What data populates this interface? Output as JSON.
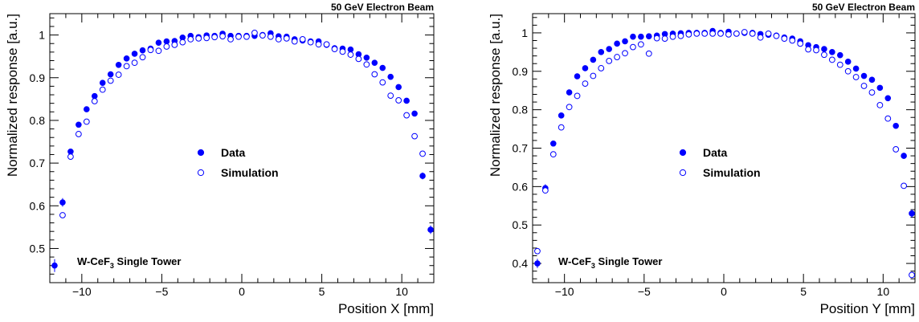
{
  "chart_data": [
    {
      "type": "scatter",
      "title": "50 GeV Electron Beam",
      "xlabel": "Position X [mm]",
      "ylabel": "Normalized response [a.u.]",
      "xlim": [
        -12,
        12
      ],
      "ylim": [
        0.42,
        1.05
      ],
      "xticks": [
        -10,
        -5,
        0,
        5,
        10
      ],
      "yticks": [
        0.5,
        0.6,
        0.7,
        0.8,
        0.9,
        1
      ],
      "xtick_labels": [
        "−10",
        "−5",
        "0",
        "5",
        "10"
      ],
      "ytick_labels": [
        "0.5",
        "0.6",
        "0.7",
        "0.8",
        "0.9",
        "1"
      ],
      "grid": false,
      "legend_position": "center",
      "annotation": {
        "prefix": "W-CeF",
        "sub": "3",
        "suffix": " Single Tower"
      },
      "series": [
        {
          "name": "Data",
          "marker": "filled-circle",
          "color": "#0000ff",
          "x": [
            -11.7,
            -11.2,
            -10.7,
            -10.2,
            -9.7,
            -9.2,
            -8.7,
            -8.2,
            -7.7,
            -7.2,
            -6.7,
            -6.2,
            -5.7,
            -5.2,
            -4.7,
            -4.2,
            -3.7,
            -3.2,
            -2.7,
            -2.2,
            -1.7,
            -1.2,
            -0.7,
            -0.2,
            0.3,
            0.8,
            1.3,
            1.8,
            2.3,
            2.8,
            3.3,
            3.8,
            4.3,
            4.8,
            5.3,
            5.8,
            6.3,
            6.8,
            7.3,
            7.8,
            8.3,
            8.8,
            9.3,
            9.8,
            10.3,
            10.8,
            11.3,
            11.8
          ],
          "y": [
            0.46,
            0.608,
            0.727,
            0.79,
            0.826,
            0.857,
            0.888,
            0.908,
            0.93,
            0.945,
            0.956,
            0.964,
            0.968,
            0.982,
            0.985,
            0.986,
            0.994,
            0.998,
            0.995,
            0.999,
            0.998,
            1.003,
            0.998,
            0.998,
            0.998,
            0.998,
            1.0,
            1.004,
            0.997,
            0.996,
            0.99,
            0.987,
            0.985,
            0.985,
            0.977,
            0.969,
            0.968,
            0.966,
            0.955,
            0.947,
            0.935,
            0.923,
            0.902,
            0.878,
            0.846,
            0.816,
            0.67,
            0.544
          ],
          "yerr": [
            0.015,
            0.01,
            0.006,
            0.006,
            0.005,
            0.005,
            0.005,
            0.005,
            0.005,
            0.005,
            0.005,
            0.005,
            0.005,
            0.005,
            0.005,
            0.005,
            0.005,
            0.005,
            0.005,
            0.005,
            0.005,
            0.005,
            0.005,
            0.005,
            0.005,
            0.005,
            0.005,
            0.005,
            0.005,
            0.005,
            0.005,
            0.005,
            0.005,
            0.005,
            0.005,
            0.005,
            0.005,
            0.005,
            0.005,
            0.005,
            0.005,
            0.005,
            0.005,
            0.005,
            0.005,
            0.006,
            0.008,
            0.01
          ]
        },
        {
          "name": "Simulation",
          "marker": "open-circle",
          "color": "#0000ff",
          "x": [
            -11.2,
            -10.7,
            -10.2,
            -9.7,
            -9.2,
            -8.7,
            -8.2,
            -7.7,
            -7.2,
            -6.7,
            -6.2,
            -5.7,
            -5.2,
            -4.7,
            -4.2,
            -3.7,
            -3.2,
            -2.7,
            -2.2,
            -1.7,
            -1.2,
            -0.7,
            -0.2,
            0.3,
            0.8,
            1.3,
            1.8,
            2.3,
            2.8,
            3.3,
            3.8,
            4.3,
            4.8,
            5.3,
            5.8,
            6.3,
            6.8,
            7.3,
            7.8,
            8.3,
            8.8,
            9.3,
            9.8,
            10.3,
            10.8,
            11.3
          ],
          "y": [
            0.578,
            0.715,
            0.768,
            0.797,
            0.845,
            0.872,
            0.893,
            0.907,
            0.927,
            0.935,
            0.948,
            0.965,
            0.963,
            0.973,
            0.977,
            0.983,
            0.99,
            0.992,
            0.993,
            0.995,
            0.997,
            0.99,
            0.996,
            0.996,
            1.005,
            0.999,
            0.996,
            0.99,
            0.992,
            0.985,
            0.99,
            0.983,
            0.978,
            0.978,
            0.967,
            0.961,
            0.954,
            0.944,
            0.931,
            0.908,
            0.889,
            0.858,
            0.847,
            0.812,
            0.763,
            0.722
          ]
        }
      ]
    },
    {
      "type": "scatter",
      "title": "50 GeV Electron Beam",
      "xlabel": "Position Y [mm]",
      "ylabel": "Normalized response [a.u.]",
      "xlim": [
        -12,
        12
      ],
      "ylim": [
        0.35,
        1.05
      ],
      "xticks": [
        -10,
        -5,
        0,
        5,
        10
      ],
      "yticks": [
        0.4,
        0.5,
        0.6,
        0.7,
        0.8,
        0.9,
        1
      ],
      "xtick_labels": [
        "−10",
        "−5",
        "0",
        "5",
        "10"
      ],
      "ytick_labels": [
        "0.4",
        "0.5",
        "0.6",
        "0.7",
        "0.8",
        "0.9",
        "1"
      ],
      "grid": false,
      "legend_position": "center",
      "annotation": {
        "prefix": "W-CeF",
        "sub": "3",
        "suffix": " Single Tower"
      },
      "series": [
        {
          "name": "Data",
          "marker": "filled-circle",
          "color": "#0000ff",
          "x": [
            -11.7,
            -11.2,
            -10.7,
            -10.2,
            -9.7,
            -9.2,
            -8.7,
            -8.2,
            -7.7,
            -7.2,
            -6.7,
            -6.2,
            -5.7,
            -5.2,
            -4.7,
            -4.2,
            -3.7,
            -3.2,
            -2.7,
            -2.2,
            -1.7,
            -1.2,
            -0.7,
            -0.2,
            0.3,
            0.8,
            1.3,
            1.8,
            2.3,
            2.8,
            3.3,
            3.8,
            4.3,
            4.8,
            5.3,
            5.8,
            6.3,
            6.8,
            7.3,
            7.8,
            8.3,
            8.8,
            9.3,
            9.8,
            10.3,
            10.8,
            11.3,
            11.8
          ],
          "y": [
            0.4,
            0.596,
            0.712,
            0.785,
            0.845,
            0.887,
            0.908,
            0.93,
            0.95,
            0.958,
            0.972,
            0.978,
            0.99,
            0.99,
            0.991,
            0.993,
            0.997,
            0.998,
            0.999,
            1.0,
            1.0,
            1.0,
            1.005,
            1.0,
            1.003,
            0.998,
            1.0,
            1.0,
            0.997,
            0.995,
            0.993,
            0.988,
            0.985,
            0.978,
            0.968,
            0.963,
            0.958,
            0.95,
            0.942,
            0.925,
            0.907,
            0.888,
            0.878,
            0.857,
            0.83,
            0.758,
            0.68,
            0.53
          ],
          "yerr": [
            0.012,
            0.01,
            0.006,
            0.006,
            0.005,
            0.005,
            0.005,
            0.005,
            0.005,
            0.005,
            0.005,
            0.005,
            0.005,
            0.005,
            0.005,
            0.005,
            0.005,
            0.005,
            0.005,
            0.005,
            0.005,
            0.005,
            0.005,
            0.005,
            0.005,
            0.005,
            0.005,
            0.005,
            0.005,
            0.005,
            0.005,
            0.005,
            0.005,
            0.005,
            0.005,
            0.005,
            0.005,
            0.005,
            0.005,
            0.005,
            0.005,
            0.005,
            0.005,
            0.005,
            0.006,
            0.006,
            0.008,
            0.01
          ]
        },
        {
          "name": "Simulation",
          "marker": "open-circle",
          "color": "#0000ff",
          "x": [
            -11.7,
            -11.2,
            -10.7,
            -10.2,
            -9.7,
            -9.2,
            -8.7,
            -8.2,
            -7.7,
            -7.2,
            -6.7,
            -6.2,
            -5.7,
            -5.2,
            -4.7,
            -4.2,
            -3.7,
            -3.2,
            -2.7,
            -2.2,
            -1.7,
            -1.2,
            -0.7,
            -0.2,
            0.3,
            0.8,
            1.3,
            1.8,
            2.3,
            2.8,
            3.3,
            3.8,
            4.3,
            4.8,
            5.3,
            5.8,
            6.3,
            6.8,
            7.3,
            7.8,
            8.3,
            8.8,
            9.3,
            9.8,
            10.3,
            10.8,
            11.3,
            11.8
          ],
          "y": [
            0.432,
            0.59,
            0.684,
            0.754,
            0.807,
            0.836,
            0.868,
            0.888,
            0.908,
            0.927,
            0.937,
            0.947,
            0.963,
            0.97,
            0.946,
            0.986,
            0.985,
            0.99,
            0.992,
            0.996,
            0.998,
            0.998,
            0.998,
            0.998,
            0.996,
            0.998,
            1.002,
            0.998,
            0.988,
            0.998,
            0.992,
            0.985,
            0.98,
            0.972,
            0.957,
            0.955,
            0.943,
            0.93,
            0.917,
            0.9,
            0.885,
            0.862,
            0.845,
            0.812,
            0.777,
            0.697,
            0.602,
            0.37
          ]
        }
      ]
    }
  ]
}
